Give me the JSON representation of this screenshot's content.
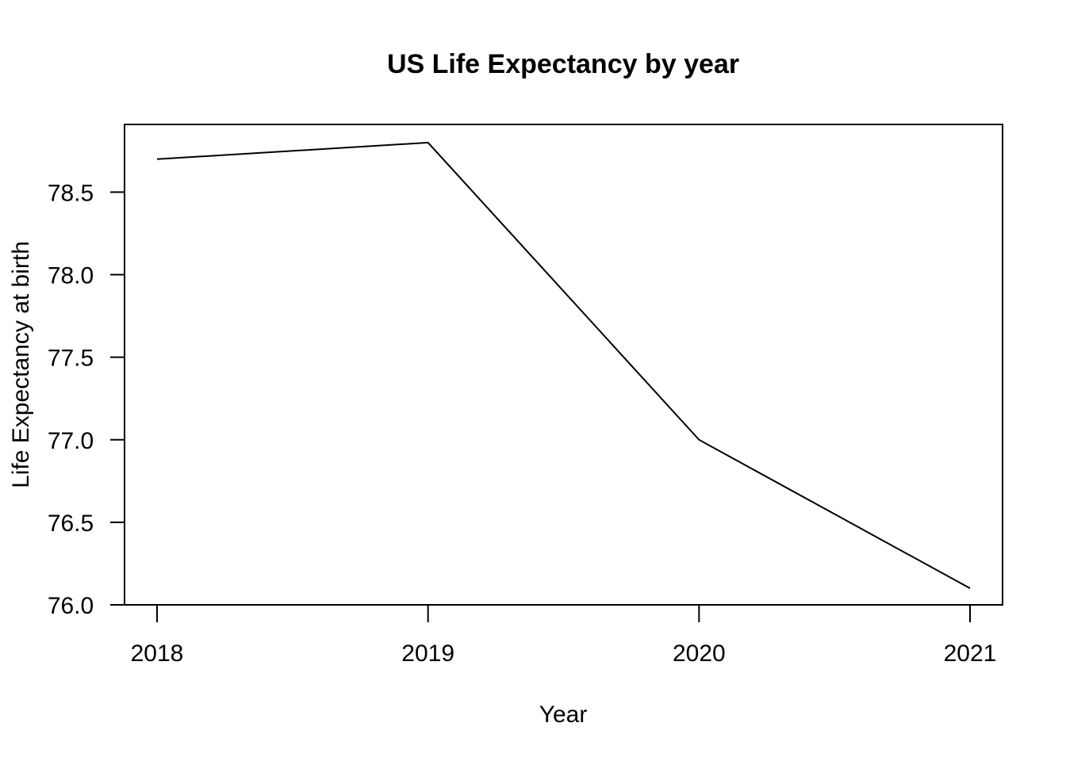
{
  "chart_data": {
    "type": "line",
    "title": "US Life Expectancy by year",
    "xlabel": "Year",
    "ylabel": "Life Expectancy at birth",
    "x": [
      2018,
      2019,
      2020,
      2021
    ],
    "series": [
      {
        "values": [
          78.7,
          78.8,
          77.0,
          76.1
        ],
        "color": "#000000"
      }
    ],
    "xlim": [
      2017.88,
      2021.12
    ],
    "ylim": [
      76.0,
      78.91
    ],
    "xticks": [
      2018,
      2019,
      2020,
      2021
    ],
    "xtick_labels": [
      "2018",
      "2019",
      "2020",
      "2021"
    ],
    "yticks": [
      76.0,
      76.5,
      77.0,
      77.5,
      78.0,
      78.5
    ],
    "ytick_labels": [
      "76.0",
      "76.5",
      "77.0",
      "77.5",
      "78.0",
      "78.5"
    ],
    "grid": false,
    "legend": "none"
  }
}
